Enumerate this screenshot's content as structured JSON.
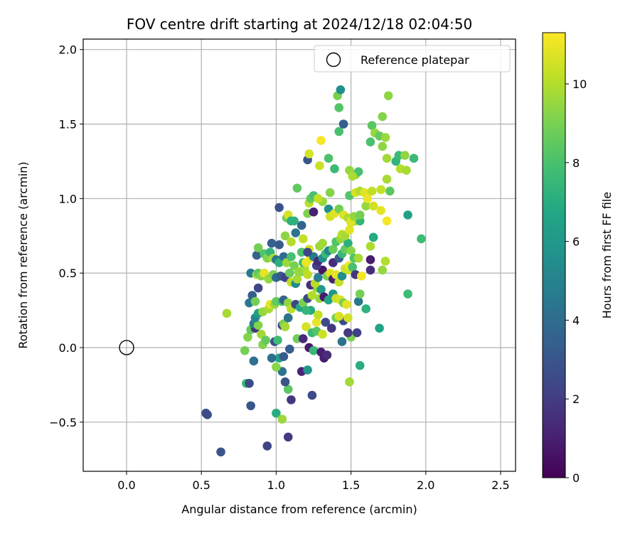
{
  "chart_data": {
    "type": "scatter",
    "title": "FOV centre drift starting at 2024/12/18 02:04:50",
    "xlabel": "Angular distance from reference (arcmin)",
    "ylabel": "Rotation from reference (arcmin)",
    "xlim": [
      -0.29,
      2.6
    ],
    "ylim": [
      -0.83,
      2.07
    ],
    "xticks": [
      0.0,
      0.5,
      1.0,
      1.5,
      2.0,
      2.5
    ],
    "xtick_labels": [
      "0.0",
      "0.5",
      "1.0",
      "1.5",
      "2.0",
      "2.5"
    ],
    "yticks": [
      -0.5,
      0.0,
      0.5,
      1.0,
      1.5,
      2.0
    ],
    "ytick_labels": [
      "−0.5",
      "0.0",
      "0.5",
      "1.0",
      "1.5",
      "2.0"
    ],
    "grid": true,
    "legend": {
      "placement": "top-right",
      "entries": [
        "Reference platepar"
      ]
    },
    "reference_point": {
      "x": 0.0,
      "y": 0.0
    },
    "colorbar": {
      "label": "Hours from first FF file",
      "colormap": "viridis",
      "range": [
        0,
        11.3
      ],
      "ticks": [
        0,
        2,
        4,
        6,
        8,
        10
      ],
      "tick_labels": [
        "0",
        "2",
        "4",
        "6",
        "8",
        "10"
      ]
    },
    "points": [
      [
        0.53,
        -0.44,
        2.8
      ],
      [
        0.54,
        -0.45,
        2.6
      ],
      [
        0.63,
        -0.7,
        3.0
      ],
      [
        0.83,
        -0.39,
        3.1
      ],
      [
        0.94,
        -0.66,
        2.3
      ],
      [
        1.08,
        -0.6,
        1.9
      ],
      [
        0.8,
        -0.24,
        7.6
      ],
      [
        0.82,
        -0.24,
        2.5
      ],
      [
        0.85,
        -0.09,
        4.2
      ],
      [
        0.79,
        -0.02,
        8.9
      ],
      [
        1.0,
        -0.44,
        7.0
      ],
      [
        1.04,
        -0.48,
        9.6
      ],
      [
        1.08,
        -0.28,
        8.4
      ],
      [
        1.1,
        -0.35,
        1.8
      ],
      [
        1.06,
        -0.23,
        2.9
      ],
      [
        1.04,
        -0.16,
        4.3
      ],
      [
        1.02,
        -0.07,
        6.6
      ],
      [
        1.0,
        -0.13,
        9.3
      ],
      [
        0.97,
        -0.07,
        4.1
      ],
      [
        1.05,
        -0.06,
        3.2
      ],
      [
        1.17,
        -0.16,
        1.2
      ],
      [
        1.21,
        -0.15,
        6.0
      ],
      [
        1.24,
        -0.32,
        2.6
      ],
      [
        1.22,
        0.0,
        0.8
      ],
      [
        1.25,
        -0.02,
        7.5
      ],
      [
        1.3,
        -0.03,
        1.0
      ],
      [
        1.32,
        -0.07,
        0.9
      ],
      [
        1.34,
        -0.05,
        1.5
      ],
      [
        1.44,
        0.04,
        4.3
      ],
      [
        1.49,
        -0.23,
        9.7
      ],
      [
        1.56,
        -0.12,
        7.0
      ],
      [
        1.5,
        0.07,
        9.1
      ],
      [
        1.48,
        0.1,
        1.9
      ],
      [
        1.54,
        0.1,
        2.2
      ],
      [
        1.41,
        0.2,
        11.0
      ],
      [
        1.45,
        0.18,
        2.6
      ],
      [
        1.48,
        0.2,
        10.5
      ],
      [
        1.6,
        0.26,
        7.2
      ],
      [
        1.55,
        0.31,
        4.5
      ],
      [
        1.69,
        0.13,
        6.6
      ],
      [
        0.67,
        0.23,
        9.8
      ],
      [
        0.81,
        0.07,
        9.2
      ],
      [
        0.83,
        0.12,
        8.6
      ],
      [
        0.86,
        0.13,
        1.7
      ],
      [
        0.85,
        0.16,
        4.6
      ],
      [
        0.88,
        0.15,
        9.2
      ],
      [
        0.9,
        0.09,
        9.7
      ],
      [
        0.91,
        0.02,
        9.2
      ],
      [
        0.93,
        0.05,
        8.6
      ],
      [
        0.99,
        0.04,
        2.6
      ],
      [
        1.01,
        0.05,
        7.7
      ],
      [
        1.04,
        0.15,
        2.3
      ],
      [
        1.05,
        0.16,
        9.0
      ],
      [
        1.06,
        0.14,
        9.8
      ],
      [
        1.08,
        0.2,
        4.3
      ],
      [
        1.09,
        -0.01,
        3.3
      ],
      [
        1.14,
        0.06,
        8.8
      ],
      [
        1.18,
        0.06,
        1.4
      ],
      [
        1.2,
        0.14,
        10.6
      ],
      [
        1.24,
        0.1,
        7.6
      ],
      [
        1.27,
        0.11,
        8.3
      ],
      [
        1.31,
        0.09,
        10.4
      ],
      [
        1.33,
        0.17,
        2.6
      ],
      [
        1.37,
        0.13,
        1.8
      ],
      [
        1.4,
        0.2,
        8.9
      ],
      [
        1.42,
        0.21,
        10.6
      ],
      [
        1.27,
        0.17,
        10.9
      ],
      [
        1.23,
        0.25,
        6.9
      ],
      [
        1.28,
        0.22,
        10.3
      ],
      [
        1.29,
        0.33,
        9.5
      ],
      [
        0.82,
        0.3,
        4.5
      ],
      [
        0.84,
        0.35,
        3.4
      ],
      [
        0.86,
        0.31,
        8.9
      ],
      [
        0.88,
        0.4,
        2.3
      ],
      [
        0.86,
        0.2,
        5.2
      ],
      [
        0.88,
        0.23,
        6.2
      ],
      [
        0.91,
        0.24,
        9.5
      ],
      [
        0.95,
        0.26,
        9.8
      ],
      [
        0.96,
        0.29,
        10.9
      ],
      [
        0.99,
        0.29,
        9.6
      ],
      [
        1.0,
        0.31,
        8.6
      ],
      [
        1.04,
        0.31,
        7.8
      ],
      [
        1.05,
        0.32,
        3.6
      ],
      [
        1.08,
        0.3,
        9.4
      ],
      [
        1.1,
        0.26,
        10.1
      ],
      [
        1.13,
        0.29,
        2.3
      ],
      [
        1.16,
        0.27,
        6.7
      ],
      [
        1.18,
        0.3,
        9.0
      ],
      [
        1.2,
        0.25,
        7.4
      ],
      [
        1.21,
        0.33,
        2.5
      ],
      [
        1.24,
        0.35,
        10.0
      ],
      [
        1.27,
        0.4,
        9.6
      ],
      [
        1.3,
        0.39,
        6.1
      ],
      [
        1.32,
        0.34,
        0.8
      ],
      [
        1.35,
        0.32,
        6.6
      ],
      [
        1.38,
        0.36,
        5.9
      ],
      [
        1.4,
        0.33,
        10.4
      ],
      [
        1.43,
        0.32,
        10.6
      ],
      [
        1.45,
        0.3,
        8.9
      ],
      [
        1.47,
        0.29,
        10.8
      ],
      [
        1.56,
        0.36,
        8.9
      ],
      [
        1.88,
        0.36,
        7.7
      ],
      [
        0.83,
        0.5,
        4.6
      ],
      [
        0.87,
        0.49,
        9.9
      ],
      [
        0.88,
        0.5,
        8.5
      ],
      [
        0.9,
        0.48,
        9.3
      ],
      [
        0.92,
        0.5,
        10.9
      ],
      [
        0.95,
        0.46,
        9.5
      ],
      [
        0.98,
        0.49,
        9.1
      ],
      [
        1.0,
        0.47,
        3.9
      ],
      [
        1.03,
        0.48,
        3.2
      ],
      [
        1.06,
        0.47,
        2.2
      ],
      [
        1.09,
        0.5,
        8.7
      ],
      [
        1.1,
        0.44,
        10.2
      ],
      [
        1.13,
        0.43,
        5.4
      ],
      [
        1.14,
        0.46,
        9.8
      ],
      [
        1.17,
        0.51,
        8.8
      ],
      [
        1.19,
        0.53,
        9.9
      ],
      [
        1.21,
        0.49,
        10.2
      ],
      [
        1.23,
        0.42,
        1.5
      ],
      [
        1.26,
        0.43,
        10.1
      ],
      [
        1.28,
        0.47,
        4.8
      ],
      [
        1.31,
        0.52,
        0.6
      ],
      [
        1.34,
        0.48,
        9.0
      ],
      [
        1.36,
        0.5,
        10.7
      ],
      [
        1.38,
        0.46,
        1.1
      ],
      [
        1.4,
        0.49,
        10.9
      ],
      [
        1.42,
        0.44,
        10.3
      ],
      [
        1.44,
        0.48,
        5.6
      ],
      [
        1.46,
        0.53,
        10.5
      ],
      [
        1.48,
        0.52,
        10.4
      ],
      [
        1.49,
        0.55,
        11.0
      ],
      [
        1.51,
        0.54,
        8.0
      ],
      [
        1.53,
        0.49,
        1.8
      ],
      [
        1.57,
        0.48,
        11.1
      ],
      [
        1.63,
        0.52,
        1.5
      ],
      [
        1.63,
        0.59,
        0.9
      ],
      [
        1.71,
        0.52,
        9.5
      ],
      [
        1.73,
        0.58,
        10.0
      ],
      [
        0.87,
        0.62,
        3.6
      ],
      [
        0.88,
        0.67,
        8.9
      ],
      [
        0.92,
        0.63,
        8.2
      ],
      [
        0.94,
        0.6,
        9.2
      ],
      [
        0.96,
        0.64,
        7.4
      ],
      [
        0.98,
        0.6,
        9.8
      ],
      [
        1.0,
        0.59,
        4.4
      ],
      [
        1.02,
        0.57,
        7.1
      ],
      [
        1.05,
        0.61,
        4.0
      ],
      [
        1.07,
        0.57,
        9.6
      ],
      [
        1.1,
        0.61,
        8.0
      ],
      [
        1.12,
        0.55,
        9.0
      ],
      [
        1.15,
        0.51,
        9.5
      ],
      [
        1.17,
        0.64,
        8.1
      ],
      [
        1.18,
        0.57,
        7.8
      ],
      [
        1.2,
        0.57,
        11.0
      ],
      [
        1.22,
        0.66,
        10.6
      ],
      [
        1.23,
        0.6,
        10.9
      ],
      [
        1.25,
        0.61,
        4.7
      ],
      [
        1.27,
        0.55,
        2.1
      ],
      [
        1.28,
        0.58,
        1.3
      ],
      [
        1.31,
        0.6,
        5.6
      ],
      [
        1.33,
        0.63,
        7.6
      ],
      [
        1.35,
        0.65,
        5.3
      ],
      [
        1.38,
        0.57,
        1.4
      ],
      [
        1.42,
        0.6,
        3.2
      ],
      [
        1.44,
        0.63,
        7.5
      ],
      [
        1.46,
        0.66,
        8.6
      ],
      [
        1.48,
        0.7,
        7.1
      ],
      [
        1.5,
        0.65,
        9.3
      ],
      [
        1.52,
        0.6,
        8.2
      ],
      [
        1.55,
        0.6,
        9.8
      ],
      [
        1.63,
        0.68,
        9.9
      ],
      [
        1.65,
        0.74,
        6.9
      ],
      [
        1.97,
        0.73,
        7.7
      ],
      [
        0.97,
        0.7,
        3.5
      ],
      [
        1.02,
        0.69,
        3.2
      ],
      [
        1.06,
        0.75,
        9.4
      ],
      [
        1.1,
        0.71,
        10.0
      ],
      [
        1.13,
        0.77,
        4.4
      ],
      [
        1.18,
        0.73,
        10.3
      ],
      [
        1.21,
        0.64,
        2.4
      ],
      [
        1.29,
        0.68,
        9.6
      ],
      [
        1.31,
        0.7,
        9.7
      ],
      [
        1.38,
        0.66,
        8.7
      ],
      [
        1.4,
        0.71,
        8.2
      ],
      [
        1.43,
        0.73,
        9.5
      ],
      [
        1.44,
        0.76,
        10.1
      ],
      [
        1.46,
        0.75,
        9.8
      ],
      [
        1.49,
        0.79,
        10.8
      ],
      [
        1.5,
        0.84,
        10.5
      ],
      [
        1.53,
        0.85,
        10.0
      ],
      [
        1.56,
        0.85,
        7.4
      ],
      [
        1.07,
        0.87,
        8.8
      ],
      [
        1.08,
        0.89,
        10.6
      ],
      [
        1.1,
        0.85,
        7.1
      ],
      [
        1.12,
        0.85,
        7.2
      ],
      [
        1.17,
        0.82,
        3.7
      ],
      [
        1.21,
        0.9,
        9.1
      ],
      [
        1.22,
        0.97,
        10.1
      ],
      [
        1.25,
        0.91,
        1.0
      ],
      [
        1.31,
        0.98,
        9.5
      ],
      [
        1.35,
        0.93,
        5.6
      ],
      [
        1.36,
        0.88,
        10.5
      ],
      [
        1.39,
        0.9,
        10.8
      ],
      [
        1.42,
        0.93,
        8.9
      ],
      [
        1.45,
        0.89,
        10.7
      ],
      [
        1.48,
        0.87,
        9.9
      ],
      [
        1.5,
        0.85,
        10.8
      ],
      [
        1.52,
        0.88,
        9.5
      ],
      [
        1.56,
        0.89,
        8.9
      ],
      [
        1.6,
        0.95,
        9.5
      ],
      [
        1.65,
        0.95,
        10.5
      ],
      [
        1.7,
        0.92,
        10.9
      ],
      [
        1.74,
        0.85,
        11.2
      ],
      [
        1.88,
        0.89,
        6.4
      ],
      [
        1.02,
        0.94,
        2.8
      ],
      [
        1.23,
        1.0,
        8.6
      ],
      [
        1.25,
        1.02,
        8.0
      ],
      [
        1.28,
        1.0,
        10.3
      ],
      [
        1.36,
        1.04,
        9.2
      ],
      [
        1.14,
        1.07,
        8.5
      ],
      [
        1.49,
        1.02,
        8.2
      ],
      [
        1.53,
        1.04,
        10.6
      ],
      [
        1.56,
        1.05,
        9.9
      ],
      [
        1.59,
        1.04,
        10.8
      ],
      [
        1.61,
        1.0,
        11.0
      ],
      [
        1.64,
        1.05,
        10.2
      ],
      [
        1.7,
        1.06,
        10.3
      ],
      [
        1.76,
        1.05,
        8.4
      ],
      [
        1.21,
        1.26,
        3.0
      ],
      [
        1.22,
        1.3,
        10.6
      ],
      [
        1.29,
        1.22,
        10.4
      ],
      [
        1.35,
        1.27,
        8.1
      ],
      [
        1.39,
        1.2,
        7.6
      ],
      [
        1.49,
        1.19,
        9.5
      ],
      [
        1.53,
        1.16,
        9.2
      ],
      [
        1.55,
        1.18,
        8.0
      ],
      [
        1.51,
        1.15,
        9.9
      ],
      [
        1.74,
        1.13,
        9.8
      ],
      [
        1.83,
        1.2,
        10.1
      ],
      [
        1.87,
        1.19,
        9.8
      ],
      [
        1.8,
        1.25,
        7.3
      ],
      [
        1.82,
        1.29,
        7.6
      ],
      [
        1.86,
        1.29,
        9.4
      ],
      [
        1.92,
        1.27,
        7.6
      ],
      [
        1.3,
        1.39,
        11.2
      ],
      [
        1.42,
        1.45,
        8.0
      ],
      [
        1.45,
        1.5,
        3.4
      ],
      [
        1.64,
        1.49,
        8.4
      ],
      [
        1.63,
        1.38,
        8.0
      ],
      [
        1.66,
        1.44,
        9.5
      ],
      [
        1.69,
        1.42,
        8.6
      ],
      [
        1.71,
        1.35,
        9.4
      ],
      [
        1.73,
        1.41,
        9.6
      ],
      [
        1.74,
        1.27,
        9.7
      ],
      [
        1.71,
        1.55,
        9.2
      ],
      [
        1.42,
        1.61,
        8.2
      ],
      [
        1.41,
        1.69,
        9.0
      ],
      [
        1.75,
        1.69,
        9.4
      ],
      [
        1.43,
        1.73,
        5.6
      ]
    ]
  }
}
